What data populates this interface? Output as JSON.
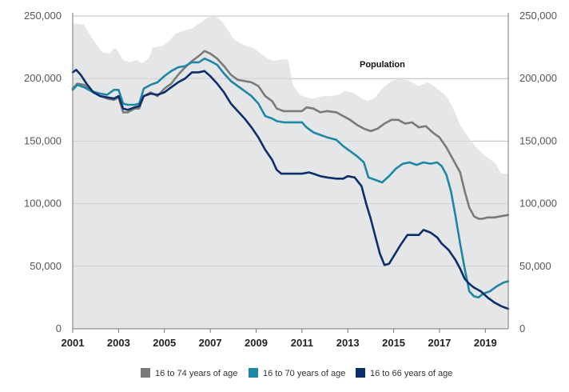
{
  "chart_data": {
    "type": "line",
    "title": "",
    "xlabel": "",
    "ylabel": "",
    "xlim": [
      2001,
      2020
    ],
    "ylim": [
      0,
      250000
    ],
    "y_ticks": [
      0,
      50000,
      100000,
      150000,
      200000,
      250000
    ],
    "y_tick_labels": [
      "0",
      "50,000",
      "100,000",
      "150,000",
      "200,000",
      "250,000"
    ],
    "x_ticks": [
      2001,
      2003,
      2005,
      2007,
      2009,
      2011,
      2013,
      2015,
      2017,
      2019
    ],
    "x_tick_labels": [
      "2001",
      "2003",
      "2005",
      "2007",
      "2009",
      "2011",
      "2013",
      "2015",
      "2017",
      "2019"
    ],
    "grid": true,
    "legend_position": "bottom",
    "annotation": "Population",
    "series": [
      {
        "name": "Population",
        "kind": "area",
        "color": "#e5e6e8",
        "points": [
          [
            2001,
            244000
          ],
          [
            2001.5,
            243000
          ],
          [
            2001.75,
            235000
          ],
          [
            2002,
            228000
          ],
          [
            2002.3,
            221000
          ],
          [
            2002.6,
            220000
          ],
          [
            2002.85,
            225000
          ],
          [
            2003,
            221000
          ],
          [
            2003.2,
            215000
          ],
          [
            2003.5,
            213000
          ],
          [
            2003.8,
            215000
          ],
          [
            2004,
            212000
          ],
          [
            2004.3,
            216000
          ],
          [
            2004.5,
            225000
          ],
          [
            2004.9,
            226000
          ],
          [
            2005.2,
            230000
          ],
          [
            2005.5,
            236000
          ],
          [
            2005.8,
            238000
          ],
          [
            2006.2,
            240000
          ],
          [
            2006.6,
            245000
          ],
          [
            2006.9,
            249000
          ],
          [
            2007.2,
            250000
          ],
          [
            2007.5,
            246000
          ],
          [
            2007.8,
            238000
          ],
          [
            2008,
            232000
          ],
          [
            2008.3,
            228000
          ],
          [
            2008.6,
            226000
          ],
          [
            2008.9,
            224000
          ],
          [
            2009.2,
            220000
          ],
          [
            2009.5,
            216000
          ],
          [
            2009.8,
            214000
          ],
          [
            2010,
            215000
          ],
          [
            2010.25,
            215500
          ],
          [
            2010.4,
            215000
          ],
          [
            2010.6,
            195000
          ],
          [
            2010.9,
            187000
          ],
          [
            2011.2,
            185000
          ],
          [
            2011.5,
            184000
          ],
          [
            2011.9,
            186000
          ],
          [
            2012.3,
            186000
          ],
          [
            2012.6,
            187000
          ],
          [
            2012.9,
            190000
          ],
          [
            2013.2,
            189000
          ],
          [
            2013.6,
            184000
          ],
          [
            2013.9,
            182000
          ],
          [
            2014.2,
            185000
          ],
          [
            2014.5,
            192000
          ],
          [
            2014.9,
            198000
          ],
          [
            2015.3,
            200000
          ],
          [
            2015.7,
            198000
          ],
          [
            2016.1,
            194000
          ],
          [
            2016.5,
            197000
          ],
          [
            2016.9,
            192000
          ],
          [
            2017.3,
            186000
          ],
          [
            2017.6,
            176000
          ],
          [
            2017.9,
            163000
          ],
          [
            2018.3,
            152000
          ],
          [
            2018.7,
            143000
          ],
          [
            2019,
            138000
          ],
          [
            2019.4,
            133000
          ],
          [
            2019.7,
            124000
          ],
          [
            2020,
            124000
          ]
        ]
      },
      {
        "name": "16 to 74 years of age",
        "kind": "line",
        "color": "#7a7a7a",
        "points": [
          [
            2001,
            192000
          ],
          [
            2001.2,
            196000
          ],
          [
            2001.5,
            195000
          ],
          [
            2001.8,
            190000
          ],
          [
            2002.2,
            186000
          ],
          [
            2002.5,
            184000
          ],
          [
            2002.8,
            183000
          ],
          [
            2003,
            185000
          ],
          [
            2003.2,
            173000
          ],
          [
            2003.4,
            173000
          ],
          [
            2003.7,
            176000
          ],
          [
            2003.9,
            176000
          ],
          [
            2004.1,
            186000
          ],
          [
            2004.4,
            189000
          ],
          [
            2004.7,
            186000
          ],
          [
            2005,
            192000
          ],
          [
            2005.3,
            196000
          ],
          [
            2005.6,
            203000
          ],
          [
            2005.9,
            209000
          ],
          [
            2006.2,
            214000
          ],
          [
            2006.5,
            218000
          ],
          [
            2006.75,
            222000
          ],
          [
            2007,
            220000
          ],
          [
            2007.3,
            216000
          ],
          [
            2007.6,
            210000
          ],
          [
            2007.9,
            203000
          ],
          [
            2008.2,
            199000
          ],
          [
            2008.5,
            198000
          ],
          [
            2008.8,
            197000
          ],
          [
            2009.1,
            194000
          ],
          [
            2009.4,
            186000
          ],
          [
            2009.7,
            182000
          ],
          [
            2009.9,
            176000
          ],
          [
            2010.2,
            174000
          ],
          [
            2010.5,
            174000
          ],
          [
            2010.8,
            174000
          ],
          [
            2011,
            174000
          ],
          [
            2011.2,
            177000
          ],
          [
            2011.5,
            176000
          ],
          [
            2011.8,
            173000
          ],
          [
            2012.1,
            174000
          ],
          [
            2012.5,
            173000
          ],
          [
            2012.8,
            170000
          ],
          [
            2013.1,
            167000
          ],
          [
            2013.4,
            163000
          ],
          [
            2013.7,
            160000
          ],
          [
            2014,
            158000
          ],
          [
            2014.3,
            160000
          ],
          [
            2014.6,
            164000
          ],
          [
            2014.9,
            167000
          ],
          [
            2015.2,
            167000
          ],
          [
            2015.5,
            164000
          ],
          [
            2015.8,
            165000
          ],
          [
            2016.1,
            161000
          ],
          [
            2016.4,
            162000
          ],
          [
            2016.7,
            157000
          ],
          [
            2017,
            153000
          ],
          [
            2017.3,
            145000
          ],
          [
            2017.6,
            135000
          ],
          [
            2017.9,
            125000
          ],
          [
            2018.1,
            110000
          ],
          [
            2018.3,
            97000
          ],
          [
            2018.5,
            90000
          ],
          [
            2018.7,
            88000
          ],
          [
            2018.9,
            88000
          ],
          [
            2019.1,
            89000
          ],
          [
            2019.4,
            89000
          ],
          [
            2019.7,
            90000
          ],
          [
            2020,
            91000
          ]
        ]
      },
      {
        "name": "16 to 70 years of age",
        "kind": "line",
        "color": "#1f87a6",
        "points": [
          [
            2001,
            191000
          ],
          [
            2001.2,
            195000
          ],
          [
            2001.5,
            193000
          ],
          [
            2001.8,
            190000
          ],
          [
            2002.2,
            188000
          ],
          [
            2002.5,
            187000
          ],
          [
            2002.8,
            191000
          ],
          [
            2003,
            191000
          ],
          [
            2003.2,
            180000
          ],
          [
            2003.4,
            179000
          ],
          [
            2003.7,
            179000
          ],
          [
            2003.9,
            180000
          ],
          [
            2004.1,
            192000
          ],
          [
            2004.4,
            195000
          ],
          [
            2004.7,
            197000
          ],
          [
            2005,
            202000
          ],
          [
            2005.3,
            206000
          ],
          [
            2005.6,
            209000
          ],
          [
            2005.9,
            210000
          ],
          [
            2006.2,
            213000
          ],
          [
            2006.5,
            213000
          ],
          [
            2006.75,
            216000
          ],
          [
            2007,
            214000
          ],
          [
            2007.3,
            211000
          ],
          [
            2007.6,
            204000
          ],
          [
            2007.9,
            198000
          ],
          [
            2008.2,
            194000
          ],
          [
            2008.5,
            190000
          ],
          [
            2008.8,
            186000
          ],
          [
            2009.1,
            180000
          ],
          [
            2009.4,
            170000
          ],
          [
            2009.7,
            168000
          ],
          [
            2009.9,
            166000
          ],
          [
            2010.2,
            165000
          ],
          [
            2010.5,
            165000
          ],
          [
            2010.8,
            165000
          ],
          [
            2011,
            165000
          ],
          [
            2011.2,
            161000
          ],
          [
            2011.5,
            157000
          ],
          [
            2011.8,
            155000
          ],
          [
            2012.1,
            153000
          ],
          [
            2012.5,
            151000
          ],
          [
            2012.8,
            146000
          ],
          [
            2013.1,
            142000
          ],
          [
            2013.4,
            138000
          ],
          [
            2013.7,
            133000
          ],
          [
            2013.9,
            121000
          ],
          [
            2014.2,
            119000
          ],
          [
            2014.5,
            117000
          ],
          [
            2014.8,
            122000
          ],
          [
            2015.1,
            128000
          ],
          [
            2015.4,
            132000
          ],
          [
            2015.7,
            133000
          ],
          [
            2016,
            131000
          ],
          [
            2016.3,
            133000
          ],
          [
            2016.6,
            132000
          ],
          [
            2016.9,
            133000
          ],
          [
            2017.1,
            130000
          ],
          [
            2017.3,
            123000
          ],
          [
            2017.5,
            110000
          ],
          [
            2017.7,
            90000
          ],
          [
            2017.9,
            68000
          ],
          [
            2018.1,
            48000
          ],
          [
            2018.3,
            30000
          ],
          [
            2018.5,
            26000
          ],
          [
            2018.7,
            25000
          ],
          [
            2018.9,
            28000
          ],
          [
            2019.2,
            30000
          ],
          [
            2019.5,
            34000
          ],
          [
            2019.8,
            37000
          ],
          [
            2020,
            38000
          ]
        ]
      },
      {
        "name": "16 to 66 years of age",
        "kind": "line",
        "color": "#0c2f6b",
        "points": [
          [
            2001,
            205000
          ],
          [
            2001.15,
            207000
          ],
          [
            2001.35,
            203000
          ],
          [
            2001.6,
            196000
          ],
          [
            2001.9,
            189000
          ],
          [
            2002.2,
            186000
          ],
          [
            2002.5,
            185000
          ],
          [
            2002.8,
            184000
          ],
          [
            2003,
            186000
          ],
          [
            2003.2,
            176000
          ],
          [
            2003.4,
            175000
          ],
          [
            2003.7,
            177000
          ],
          [
            2003.9,
            178000
          ],
          [
            2004.1,
            186000
          ],
          [
            2004.4,
            188000
          ],
          [
            2004.7,
            187000
          ],
          [
            2005,
            189000
          ],
          [
            2005.3,
            193000
          ],
          [
            2005.6,
            197000
          ],
          [
            2005.9,
            200000
          ],
          [
            2006.2,
            205000
          ],
          [
            2006.5,
            205000
          ],
          [
            2006.75,
            206000
          ],
          [
            2007,
            202000
          ],
          [
            2007.3,
            196000
          ],
          [
            2007.6,
            189000
          ],
          [
            2007.9,
            180000
          ],
          [
            2008.2,
            174000
          ],
          [
            2008.5,
            168000
          ],
          [
            2008.8,
            161000
          ],
          [
            2009.1,
            153000
          ],
          [
            2009.4,
            143000
          ],
          [
            2009.7,
            135000
          ],
          [
            2009.9,
            127000
          ],
          [
            2010.1,
            124000
          ],
          [
            2010.5,
            124000
          ],
          [
            2010.8,
            124000
          ],
          [
            2011,
            124000
          ],
          [
            2011.3,
            125000
          ],
          [
            2011.5,
            124000
          ],
          [
            2011.8,
            122000
          ],
          [
            2012.1,
            121000
          ],
          [
            2012.5,
            120000
          ],
          [
            2012.8,
            120000
          ],
          [
            2013,
            122000
          ],
          [
            2013.3,
            121000
          ],
          [
            2013.6,
            114000
          ],
          [
            2013.8,
            100000
          ],
          [
            2014,
            88000
          ],
          [
            2014.2,
            74000
          ],
          [
            2014.4,
            60000
          ],
          [
            2014.6,
            51000
          ],
          [
            2014.8,
            52000
          ],
          [
            2015,
            58000
          ],
          [
            2015.3,
            67000
          ],
          [
            2015.6,
            75000
          ],
          [
            2015.9,
            75000
          ],
          [
            2016.1,
            75000
          ],
          [
            2016.3,
            79000
          ],
          [
            2016.6,
            77000
          ],
          [
            2016.9,
            73000
          ],
          [
            2017.1,
            68000
          ],
          [
            2017.4,
            63000
          ],
          [
            2017.7,
            55000
          ],
          [
            2017.9,
            48000
          ],
          [
            2018.1,
            40000
          ],
          [
            2018.3,
            36000
          ],
          [
            2018.5,
            33000
          ],
          [
            2018.8,
            30000
          ],
          [
            2019.1,
            25000
          ],
          [
            2019.4,
            21000
          ],
          [
            2019.7,
            18000
          ],
          [
            2020,
            16000
          ]
        ]
      }
    ]
  }
}
